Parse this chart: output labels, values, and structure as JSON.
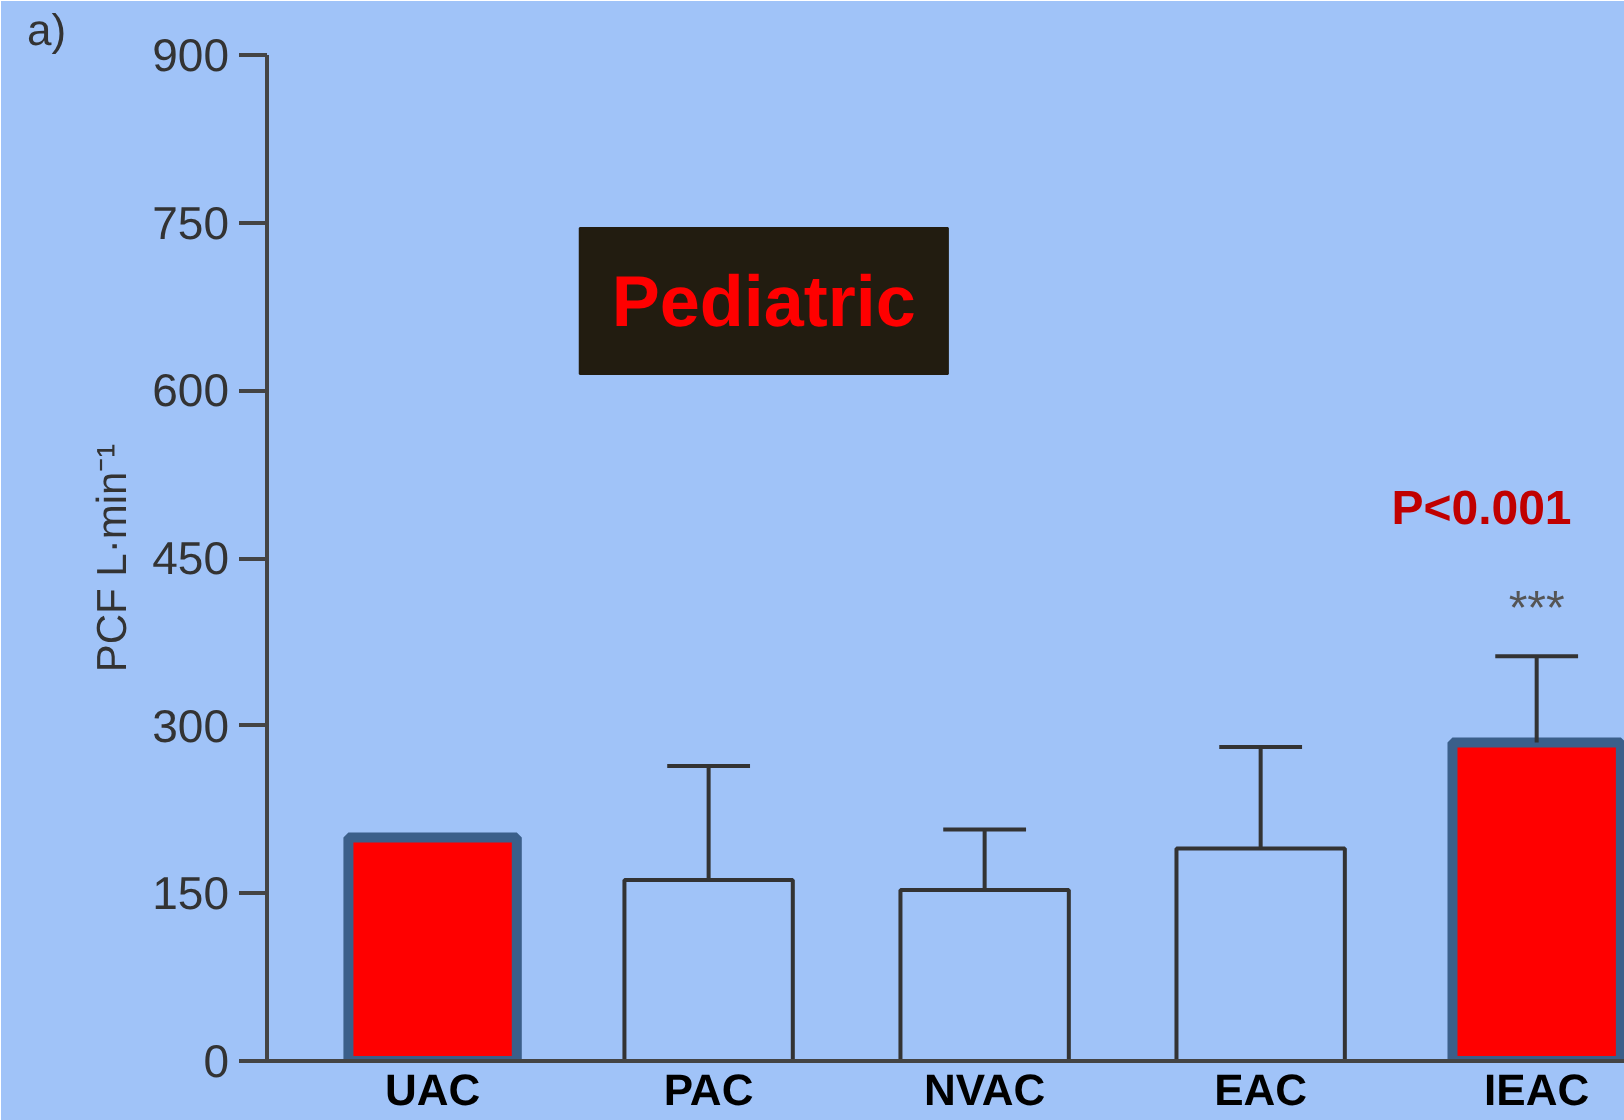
{
  "chart_data": {
    "type": "bar",
    "ylabel": "PCF L·min⁻¹",
    "categories": [
      "UAC",
      "PAC",
      "NVAC",
      "EAC",
      "IEAC"
    ],
    "values": [
      200,
      162,
      153,
      190,
      285
    ],
    "colors": [
      "#ff0000",
      "#a0c3f8",
      "#a0c3f8",
      "#a0c3f8",
      "#ff0000"
    ],
    "errors": [
      null,
      [
        162,
        264
      ],
      [
        153,
        207
      ],
      [
        190,
        281
      ],
      [
        285,
        362
      ]
    ],
    "ylim": [
      0,
      900
    ],
    "yticks": [
      0,
      150,
      300,
      450,
      600,
      750,
      900
    ],
    "grid": false,
    "annotations": [
      "a)",
      "Pediatric",
      "P<0.001",
      "***"
    ]
  }
}
